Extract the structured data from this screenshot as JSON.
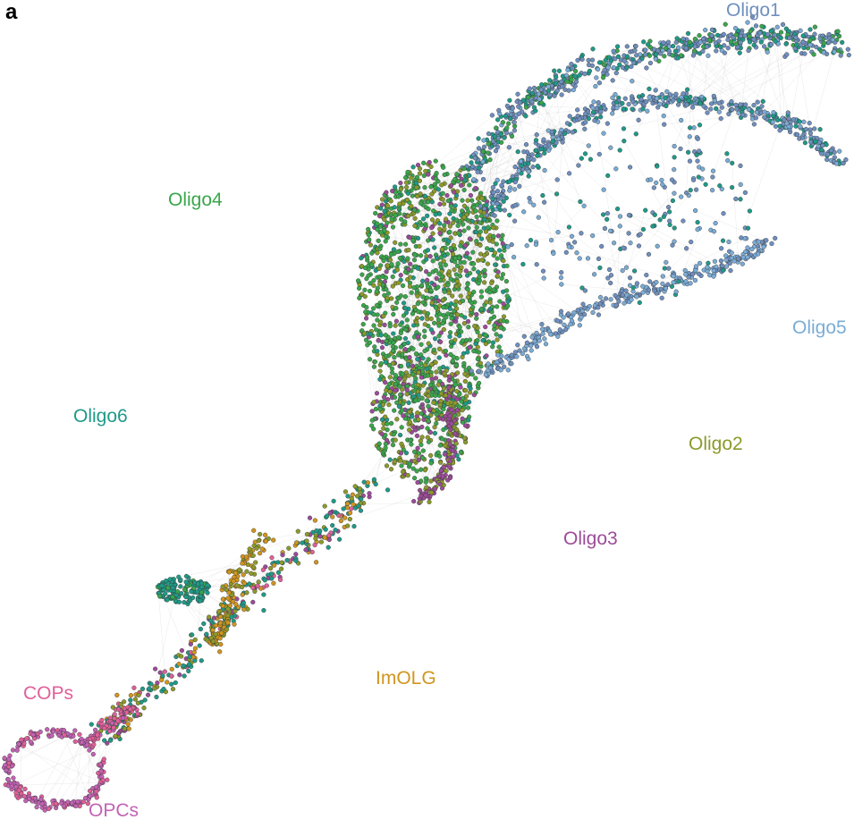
{
  "panel_letter": "a",
  "clusters": [
    {
      "key": "oligo1",
      "name": "Oligo1",
      "color": "#6f8fbf"
    },
    {
      "key": "oligo2",
      "name": "Oligo2",
      "color": "#8c9a2a"
    },
    {
      "key": "oligo3",
      "name": "Oligo3",
      "color": "#9b4c98"
    },
    {
      "key": "oligo4",
      "name": "Oligo4",
      "color": "#3aa64c"
    },
    {
      "key": "oligo5",
      "name": "Oligo5",
      "color": "#7aacd6"
    },
    {
      "key": "oligo6",
      "name": "Oligo6",
      "color": "#1f9a88"
    },
    {
      "key": "imolg",
      "name": "ImOLG",
      "color": "#d1951f"
    },
    {
      "key": "cops",
      "name": "COPs",
      "color": "#e0609a"
    },
    {
      "key": "opcs",
      "name": "OPCs",
      "color": "#c263b5"
    }
  ]
}
